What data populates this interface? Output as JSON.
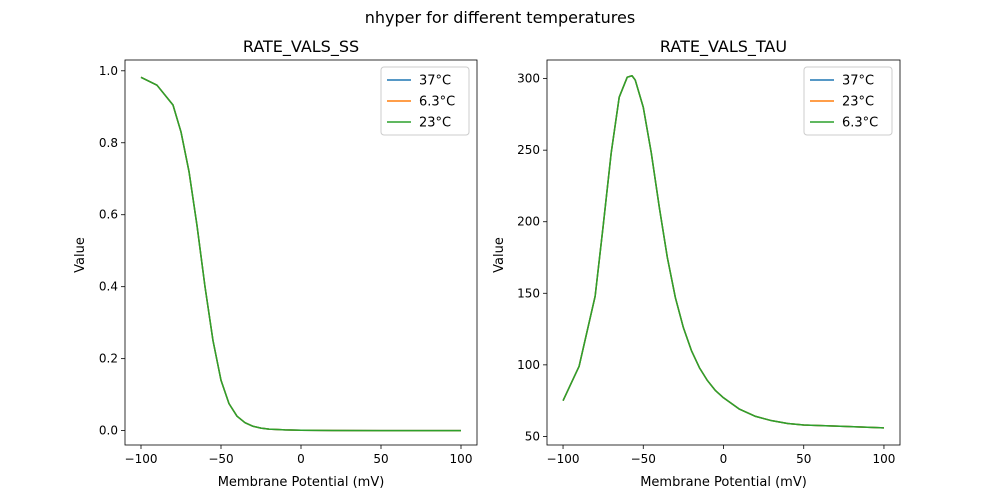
{
  "figure": {
    "suptitle": "nhyper for different temperatures"
  },
  "chart_data": [
    {
      "type": "line",
      "title": "RATE_VALS_SS",
      "xlabel": "Membrane Potential (mV)",
      "ylabel": "Value",
      "xlim": [
        -110,
        110
      ],
      "ylim": [
        -0.04,
        1.03
      ],
      "xticks": [
        -100,
        -50,
        0,
        50,
        100
      ],
      "xticklabels": [
        "−100",
        "−50",
        "0",
        "50",
        "100"
      ],
      "yticks": [
        0.0,
        0.2,
        0.4,
        0.6,
        0.8,
        1.0
      ],
      "yticklabels": [
        "0.0",
        "0.2",
        "0.4",
        "0.6",
        "0.8",
        "1.0"
      ],
      "grid": false,
      "legend": "top-right",
      "x": [
        -100,
        -90,
        -80,
        -75,
        -70,
        -65,
        -60,
        -55,
        -50,
        -45,
        -40,
        -35,
        -30,
        -25,
        -20,
        -10,
        0,
        10,
        20,
        50,
        100
      ],
      "series": [
        {
          "name": "37°C",
          "color": "#1f77b4",
          "values": [
            0.982,
            0.96,
            0.905,
            0.83,
            0.72,
            0.57,
            0.4,
            0.25,
            0.14,
            0.075,
            0.04,
            0.022,
            0.012,
            0.007,
            0.004,
            0.002,
            0.001,
            0.0005,
            0.0003,
            0.0001,
            0.0
          ]
        },
        {
          "name": "6.3°C",
          "color": "#ff7f0e",
          "values": [
            0.982,
            0.96,
            0.905,
            0.83,
            0.72,
            0.57,
            0.4,
            0.25,
            0.14,
            0.075,
            0.04,
            0.022,
            0.012,
            0.007,
            0.004,
            0.002,
            0.001,
            0.0005,
            0.0003,
            0.0001,
            0.0
          ]
        },
        {
          "name": "23°C",
          "color": "#2ca02c",
          "values": [
            0.982,
            0.96,
            0.905,
            0.83,
            0.72,
            0.57,
            0.4,
            0.25,
            0.14,
            0.075,
            0.04,
            0.022,
            0.012,
            0.007,
            0.004,
            0.002,
            0.001,
            0.0005,
            0.0003,
            0.0001,
            0.0
          ]
        }
      ]
    },
    {
      "type": "line",
      "title": "RATE_VALS_TAU",
      "xlabel": "Membrane Potential (mV)",
      "ylabel": "Value",
      "xlim": [
        -110,
        110
      ],
      "ylim": [
        44,
        313
      ],
      "xticks": [
        -100,
        -50,
        0,
        50,
        100
      ],
      "xticklabels": [
        "−100",
        "−50",
        "0",
        "50",
        "100"
      ],
      "yticks": [
        50,
        100,
        150,
        200,
        250,
        300
      ],
      "yticklabels": [
        "50",
        "100",
        "150",
        "200",
        "250",
        "300"
      ],
      "grid": false,
      "legend": "top-right",
      "x": [
        -100,
        -90,
        -80,
        -75,
        -70,
        -65,
        -60,
        -57,
        -55,
        -50,
        -45,
        -40,
        -35,
        -30,
        -25,
        -20,
        -15,
        -10,
        -5,
        0,
        10,
        20,
        30,
        40,
        50,
        75,
        100
      ],
      "series": [
        {
          "name": "37°C",
          "color": "#1f77b4",
          "values": [
            75,
            99,
            148,
            197,
            248,
            287,
            301,
            302,
            299,
            280,
            248,
            210,
            175,
            147,
            126,
            110,
            98,
            89,
            82,
            77,
            69,
            64,
            61,
            59,
            58,
            57,
            56
          ]
        },
        {
          "name": "23°C",
          "color": "#ff7f0e",
          "values": [
            75,
            99,
            148,
            197,
            248,
            287,
            301,
            302,
            299,
            280,
            248,
            210,
            175,
            147,
            126,
            110,
            98,
            89,
            82,
            77,
            69,
            64,
            61,
            59,
            58,
            57,
            56
          ]
        },
        {
          "name": "6.3°C",
          "color": "#2ca02c",
          "values": [
            75,
            99,
            148,
            197,
            248,
            287,
            301,
            302,
            299,
            280,
            248,
            210,
            175,
            147,
            126,
            110,
            98,
            89,
            82,
            77,
            69,
            64,
            61,
            59,
            58,
            57,
            56
          ]
        }
      ]
    }
  ]
}
